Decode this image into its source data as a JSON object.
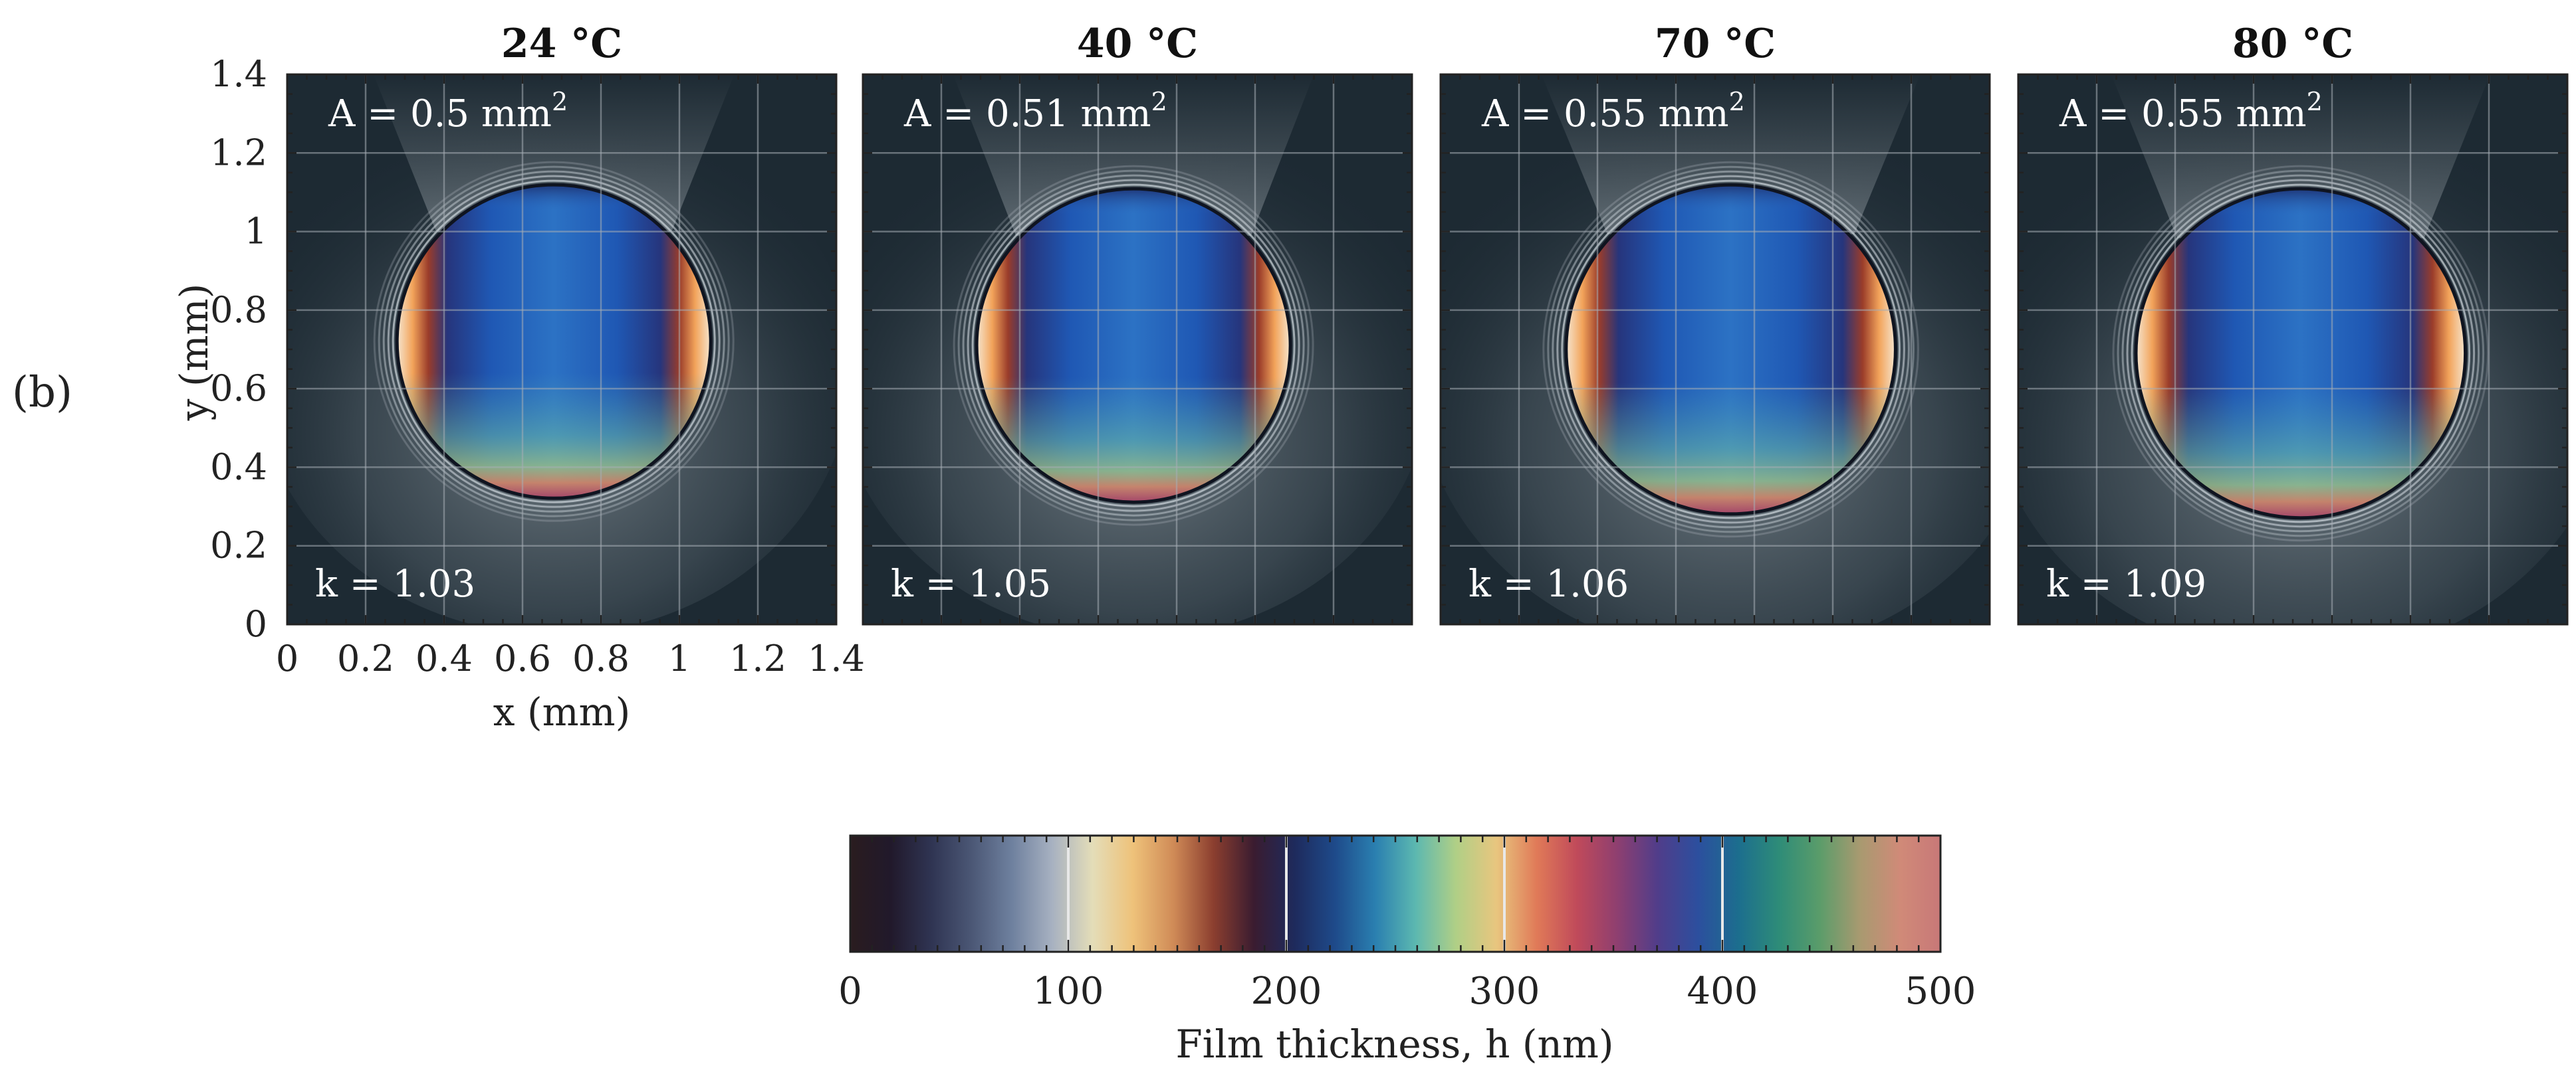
{
  "figure": {
    "panel_label": "(b)",
    "colorbar": {
      "label": "Film thickness, h (nm)",
      "ticks": [
        "0",
        "100",
        "200",
        "300",
        "400",
        "500"
      ],
      "range": [
        0,
        500
      ],
      "colors": [
        "#2a1c1f",
        "#21192b",
        "#2f3452",
        "#4b5775",
        "#6e809e",
        "#a7b1c1",
        "#e4ddb8",
        "#eec27a",
        "#d08b57",
        "#8b3e2f",
        "#3a1c30",
        "#1e2a5c",
        "#1e4a8a",
        "#2a7fb0",
        "#5cb8b0",
        "#b0cf86",
        "#e8c67f",
        "#e07a58",
        "#c04a5a",
        "#8e3f70",
        "#503d8a",
        "#2c4f9e",
        "#1c6e8e",
        "#2e8c78",
        "#5a9c6a",
        "#a89a70",
        "#d08a78",
        "#c87878"
      ]
    },
    "colors": {
      "image_background": "#1d2a33",
      "grid": "#a6adb4",
      "annotation_text": "#ffffff",
      "meniscus_bright": "#d0d8de"
    }
  },
  "chart_data": {
    "type": "image",
    "xlabel": "x (mm)",
    "ylabel": "y (mm)",
    "xlim": [
      0,
      1.4
    ],
    "ylim": [
      0,
      1.4
    ],
    "xticks": [
      "0",
      "0.2",
      "0.4",
      "0.6",
      "0.8",
      "1",
      "1.2",
      "1.4"
    ],
    "yticks": [
      "0",
      "0.2",
      "0.4",
      "0.6",
      "0.8",
      "1",
      "1.2",
      "1.4"
    ],
    "panels": [
      {
        "title": "24 °C",
        "area": "A = 0.5 mm",
        "area_exp": "2",
        "k": "k = 1.03",
        "circle_center_mm": [
          0.68,
          0.72
        ],
        "circle_radius_mm": 0.4
      },
      {
        "title": "40 °C",
        "area": "A = 0.51 mm",
        "area_exp": "2",
        "k": "k = 1.05",
        "circle_center_mm": [
          0.69,
          0.71
        ],
        "circle_radius_mm": 0.4
      },
      {
        "title": "70 °C",
        "area": "A = 0.55 mm",
        "area_exp": "2",
        "k": "k = 1.06",
        "circle_center_mm": [
          0.74,
          0.7
        ],
        "circle_radius_mm": 0.42
      },
      {
        "title": "80 °C",
        "area": "A = 0.55 mm",
        "area_exp": "2",
        "k": "k = 1.09",
        "circle_center_mm": [
          0.72,
          0.69
        ],
        "circle_radius_mm": 0.42
      }
    ]
  }
}
